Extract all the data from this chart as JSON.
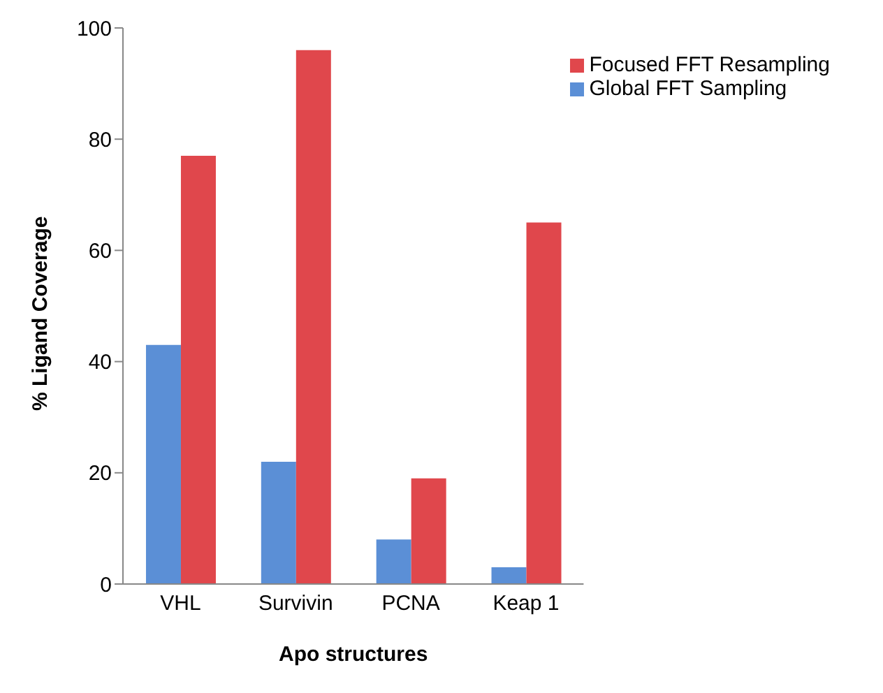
{
  "chart_data": {
    "type": "bar",
    "xlabel": "Apo structures",
    "ylabel": "% Ligand Coverage",
    "categories": [
      "VHL",
      "Survivin",
      "PCNA",
      "Keap 1"
    ],
    "series": [
      {
        "name": "Global FFT Sampling",
        "color": "#5b8fd6",
        "values": [
          43,
          22,
          8,
          3
        ]
      },
      {
        "name": "Focused FFT Resampling",
        "color": "#e0474c",
        "values": [
          77,
          96,
          19,
          65
        ]
      }
    ],
    "ylim": [
      0,
      100
    ],
    "yticks": [
      0,
      20,
      40,
      60,
      80,
      100
    ],
    "legend": "top right"
  }
}
